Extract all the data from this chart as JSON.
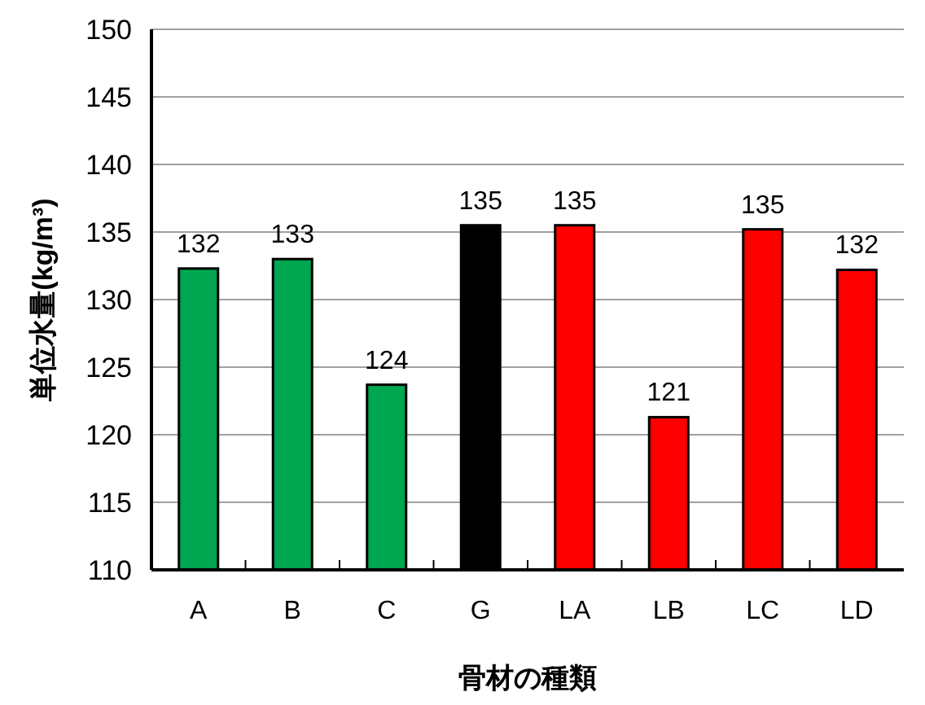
{
  "chart_data": {
    "type": "bar",
    "xlabel": "骨材の種類",
    "ylabel": "単位水量(kg/m³)",
    "categories": [
      "A",
      "B",
      "C",
      "G",
      "LA",
      "LB",
      "LC",
      "LD"
    ],
    "values": [
      132.3,
      133,
      123.7,
      135.5,
      135.5,
      121.3,
      135.2,
      132.2
    ],
    "value_labels": [
      "132",
      "133",
      "124",
      "135",
      "135",
      "121",
      "135",
      "132"
    ],
    "colors": [
      "#00a650",
      "#00a650",
      "#00a650",
      "#000000",
      "#ff0000",
      "#ff0000",
      "#ff0000",
      "#ff0000"
    ],
    "ylim": [
      110,
      150
    ],
    "yticks": [
      110,
      115,
      120,
      125,
      130,
      135,
      140,
      145,
      150
    ],
    "grid": "y"
  }
}
